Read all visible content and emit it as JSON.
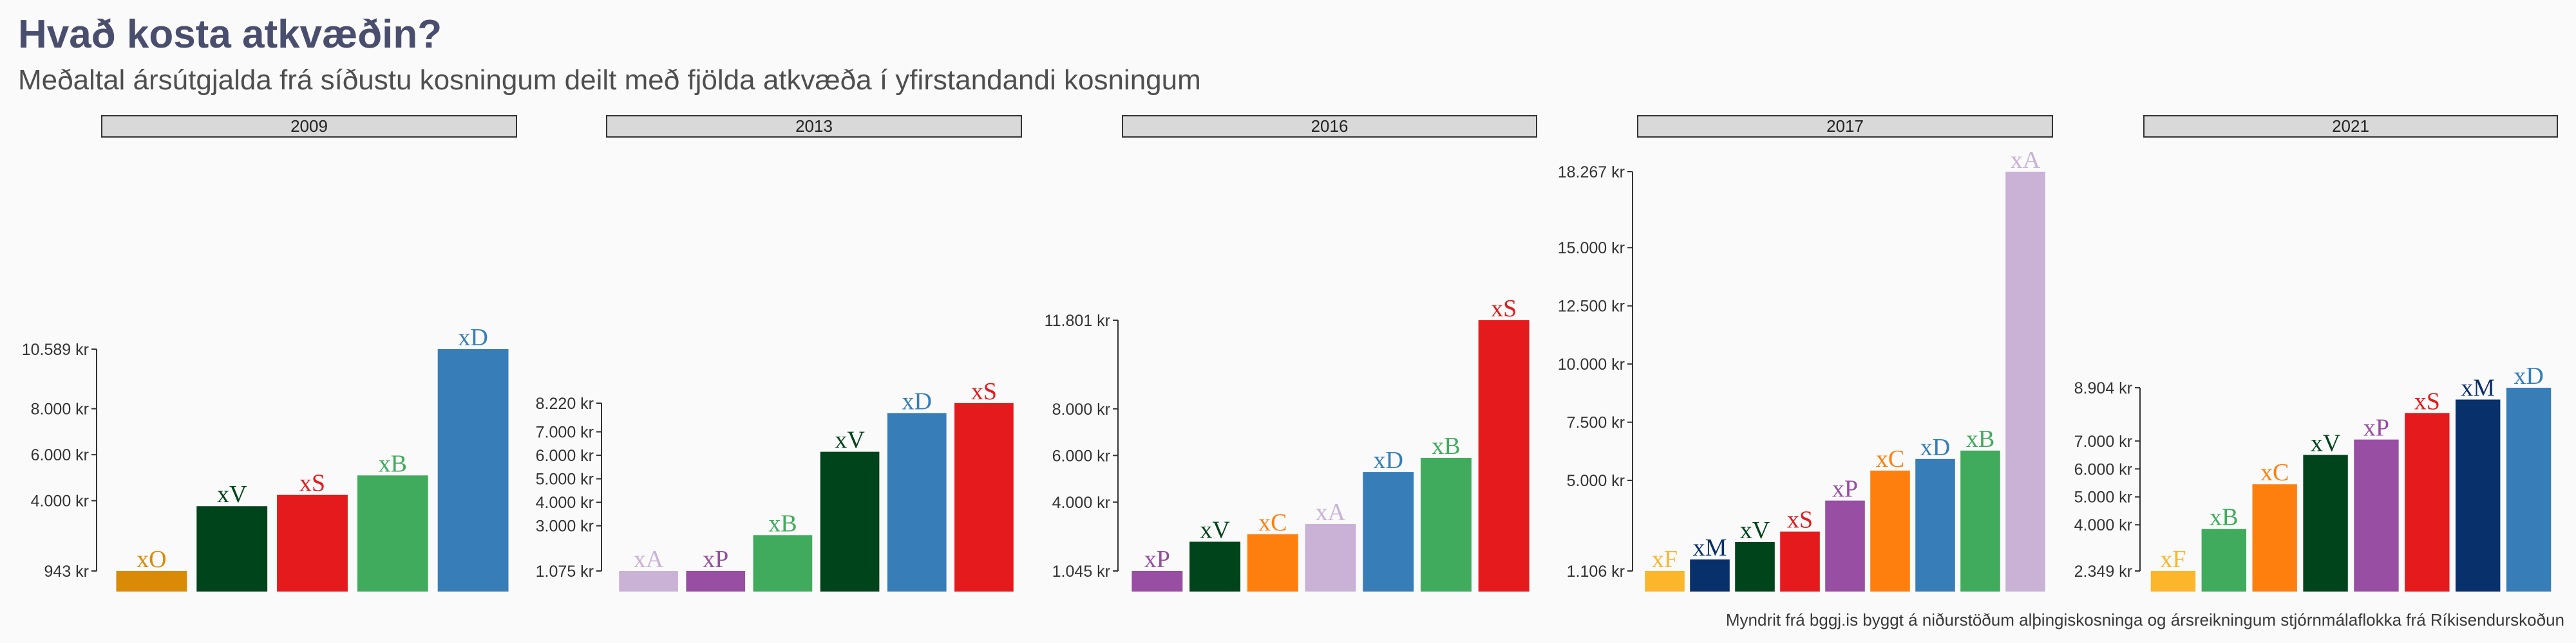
{
  "title": "Hvað kosta atkvæðin?",
  "subtitle": "Meðaltal ársútgjalda frá síðustu kosningum deilt með fjölda atkvæða í yfirstandandi kosningum",
  "caption": "Myndrit frá bggj.is byggt á niðurstöðum alþingiskosninga og ársreikningum stjórnmálaflokka frá Ríkisendurskoðun",
  "colors": {
    "xO": "#d98b07",
    "xV": "#00441b",
    "xS": "#e41a1c",
    "xB": "#41ab5d",
    "xD": "#377eb8",
    "xA": "#c9b2d6",
    "xP": "#984ea3",
    "xC": "#ff7f0e",
    "xM": "#08306b",
    "xF": "#fbb62b"
  },
  "chart_data": [
    {
      "type": "bar",
      "panel": "2009",
      "categories": [
        "xO",
        "xV",
        "xS",
        "xB",
        "xD"
      ],
      "values": [
        943,
        3760,
        4250,
        5100,
        10589
      ],
      "ylim": [
        943,
        10589
      ],
      "yticks": [
        943,
        4000,
        6000,
        8000,
        10589
      ],
      "ytick_labels": [
        "943 kr",
        "4.000 kr",
        "6.000 kr",
        "8.000 kr",
        "10.589 kr"
      ]
    },
    {
      "type": "bar",
      "panel": "2013",
      "categories": [
        "xA",
        "xP",
        "xB",
        "xV",
        "xD",
        "xS"
      ],
      "values": [
        1075,
        1075,
        2600,
        6150,
        7800,
        8220
      ],
      "ylim": [
        1075,
        8220
      ],
      "yticks": [
        1075,
        3000,
        4000,
        5000,
        6000,
        7000,
        8220
      ],
      "ytick_labels": [
        "1.075 kr",
        "3.000 kr",
        "4.000 kr",
        "5.000 kr",
        "6.000 kr",
        "7.000 kr",
        "8.220 kr"
      ]
    },
    {
      "type": "bar",
      "panel": "2016",
      "categories": [
        "xP",
        "xV",
        "xC",
        "xA",
        "xD",
        "xB",
        "xS"
      ],
      "values": [
        1045,
        2300,
        2620,
        3060,
        5290,
        5900,
        11801
      ],
      "ylim": [
        1045,
        11801
      ],
      "yticks": [
        1045,
        4000,
        6000,
        8000,
        11801
      ],
      "ytick_labels": [
        "1.045 kr",
        "4.000 kr",
        "6.000 kr",
        "8.000 kr",
        "11.801 kr"
      ]
    },
    {
      "type": "bar",
      "panel": "2017",
      "categories": [
        "xF",
        "xM",
        "xV",
        "xS",
        "xP",
        "xC",
        "xD",
        "xB",
        "xA"
      ],
      "values": [
        1106,
        1600,
        2350,
        2800,
        4130,
        5420,
        5920,
        6280,
        18267
      ],
      "ylim": [
        1106,
        18267
      ],
      "yticks": [
        1106,
        5000,
        7500,
        10000,
        12500,
        15000,
        18267
      ],
      "ytick_labels": [
        "1.106 kr",
        "5.000 kr",
        "7.500 kr",
        "10.000 kr",
        "12.500 kr",
        "15.000 kr",
        "18.267 kr"
      ]
    },
    {
      "type": "bar",
      "panel": "2021",
      "categories": [
        "xF",
        "xB",
        "xC",
        "xV",
        "xP",
        "xS",
        "xM",
        "xD"
      ],
      "values": [
        2349,
        3850,
        5450,
        6500,
        7050,
        8000,
        8480,
        8904
      ],
      "ylim": [
        2349,
        8904
      ],
      "yticks": [
        2349,
        4000,
        5000,
        6000,
        7000,
        8904
      ],
      "ytick_labels": [
        "2.349 kr",
        "4.000 kr",
        "5.000 kr",
        "6.000 kr",
        "7.000 kr",
        "8.904 kr"
      ]
    }
  ]
}
